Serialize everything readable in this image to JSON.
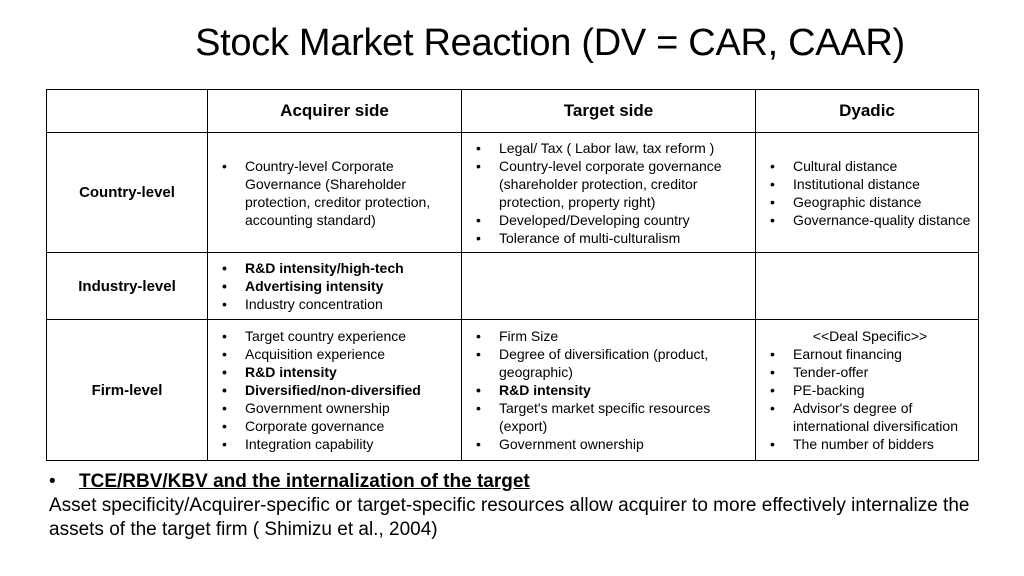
{
  "title": "Stock Market Reaction (DV = CAR, CAAR)",
  "table": {
    "headers": [
      "",
      "Acquirer side",
      "Target side",
      "Dyadic"
    ],
    "rows": [
      {
        "label": "Country-level",
        "acquirer": [
          {
            "text": "Country-level Corporate Governance (Shareholder protection, creditor protection, accounting standard)",
            "bold": false
          }
        ],
        "target": [
          {
            "text": "Legal/ Tax ( Labor law, tax reform )",
            "bold": false
          },
          {
            "text": "Country-level corporate governance (shareholder protection, creditor protection, property right)",
            "bold": false
          },
          {
            "text": "Developed/Developing country",
            "bold": false
          },
          {
            "text": "Tolerance of multi-culturalism",
            "bold": false
          }
        ],
        "dyadic": [
          {
            "text": "Cultural distance",
            "bold": false
          },
          {
            "text": "Institutional distance",
            "bold": false
          },
          {
            "text": "Geographic distance",
            "bold": false
          },
          {
            "text": "Governance-quality distance",
            "bold": false
          }
        ]
      },
      {
        "label": "Industry-level",
        "acquirer": [
          {
            "text": "R&D intensity/high-tech",
            "bold": true
          },
          {
            "text": "Advertising intensity",
            "bold": true
          },
          {
            "text": "Industry concentration",
            "bold": false
          }
        ],
        "target": [],
        "dyadic": []
      },
      {
        "label": "Firm-level",
        "acquirer": [
          {
            "text": "Target country experience",
            "bold": false
          },
          {
            "text": "Acquisition experience",
            "bold": false
          },
          {
            "text": "R&D intensity",
            "bold": true
          },
          {
            "text": "Diversified/non-diversified",
            "bold": true
          },
          {
            "text": "Government ownership",
            "bold": false
          },
          {
            "text": "Corporate governance",
            "bold": false
          },
          {
            "text": "Integration capability",
            "bold": false
          }
        ],
        "target": [
          {
            "text": "Firm Size",
            "bold": false
          },
          {
            "text": "Degree of diversification (product, geographic)",
            "bold": false
          },
          {
            "text": "R&D intensity",
            "bold": true
          },
          {
            "text": "Target's market specific resources (export)",
            "bold": false
          },
          {
            "text": "Government ownership",
            "bold": false
          }
        ],
        "dyadic_heading": "<<Deal Specific>>",
        "dyadic": [
          {
            "text": "Earnout financing",
            "bold": false
          },
          {
            "text": "Tender-offer",
            "bold": false
          },
          {
            "text": "PE-backing",
            "bold": false
          },
          {
            "text": "Advisor's degree of international diversification",
            "bold": false
          },
          {
            "text": "The number of bidders",
            "bold": false
          }
        ]
      }
    ]
  },
  "bottom": {
    "bullet": "•",
    "heading": "TCE/RBV/KBV and the internalization of the target",
    "body": "Asset specificity/Acquirer-specific or target-specific resources allow acquirer to more effectively internalize the assets of the target firm ( Shimizu et al., 2004)"
  }
}
